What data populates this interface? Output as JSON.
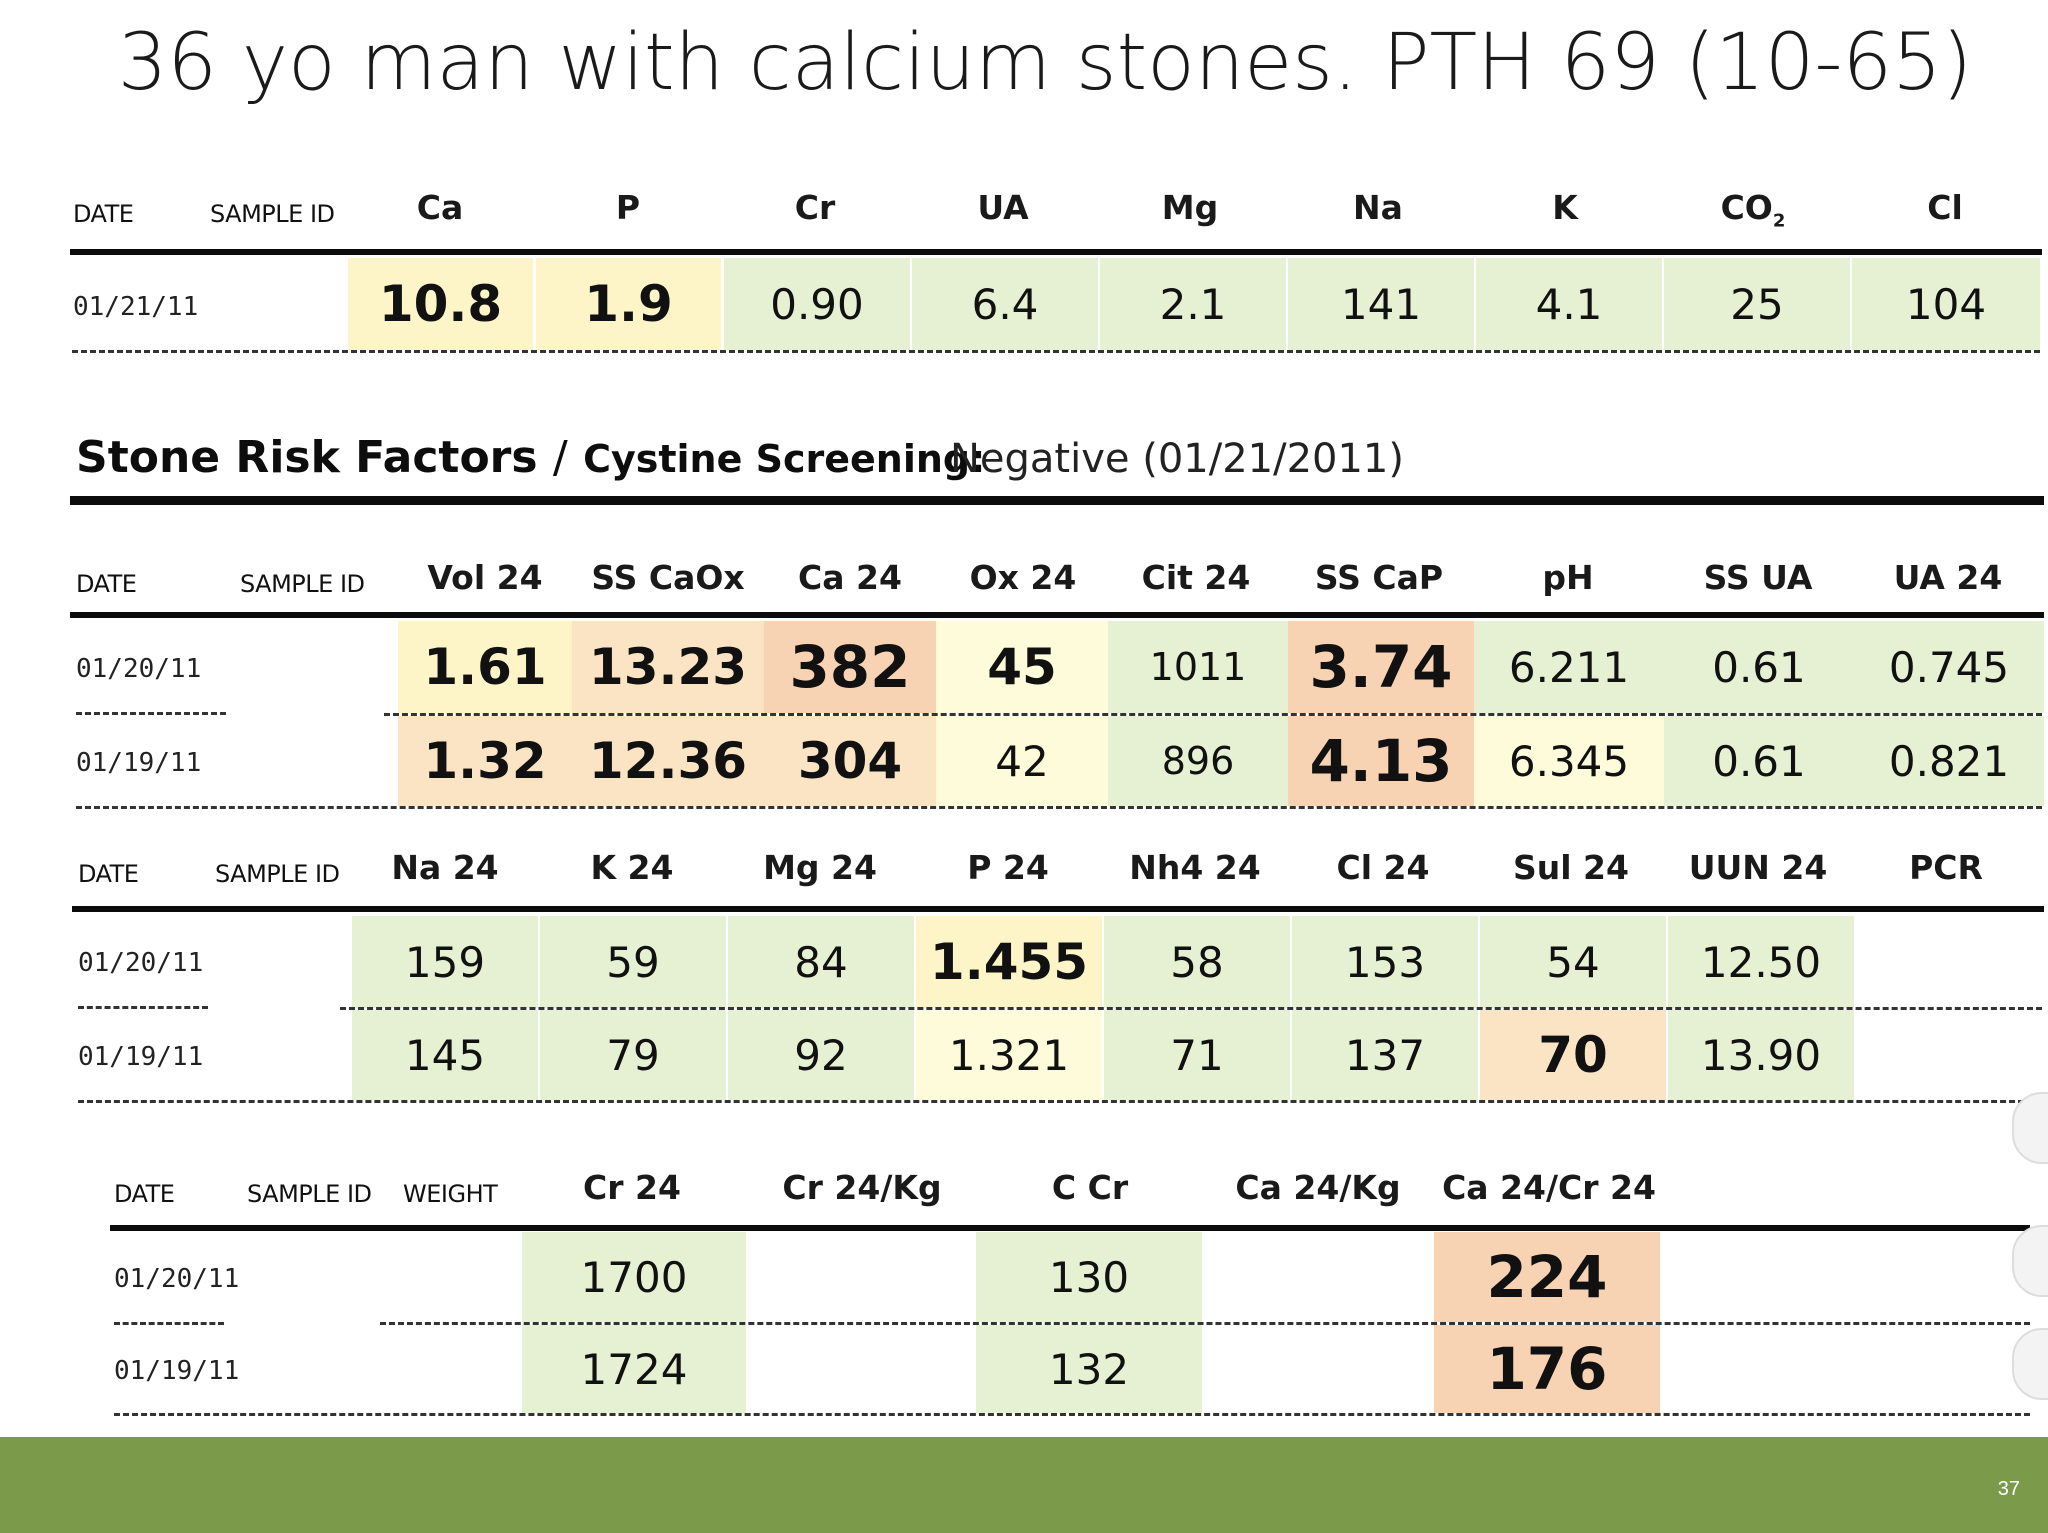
{
  "title": "36 yo man with calcium stones. PTH 69 (10-65)",
  "labels": {
    "date": "DATE",
    "sample_id": "SAMPLE ID",
    "weight": "WEIGHT"
  },
  "serum": {
    "headers": [
      "Ca",
      "P",
      "Cr",
      "UA",
      "Mg",
      "Na",
      "K",
      "CO",
      "Cl"
    ],
    "co2_sub": "2",
    "rows": [
      {
        "date": "01/21/11",
        "values": [
          "10.8",
          "1.9",
          "0.90",
          "6.4",
          "2.1",
          "141",
          "4.1",
          "25",
          "104"
        ]
      }
    ]
  },
  "stone_risk": {
    "title": "Stone Risk Factors",
    "slash": "/",
    "subtitle": "Cystine Screening:",
    "screening_result": "Negative (01/21/2011)"
  },
  "urine1": {
    "headers": [
      "Vol 24",
      "SS CaOx",
      "Ca 24",
      "Ox 24",
      "Cit 24",
      "SS CaP",
      "pH",
      "SS UA",
      "UA 24"
    ],
    "rows": [
      {
        "date": "01/20/11",
        "values": [
          "1.61",
          "13.23",
          "382",
          "45",
          "1011",
          "3.74",
          "6.211",
          "0.61",
          "0.745"
        ]
      },
      {
        "date": "01/19/11",
        "values": [
          "1.32",
          "12.36",
          "304",
          "42",
          "896",
          "4.13",
          "6.345",
          "0.61",
          "0.821"
        ]
      }
    ]
  },
  "urine2": {
    "headers": [
      "Na 24",
      "K 24",
      "Mg 24",
      "P 24",
      "Nh4 24",
      "Cl 24",
      "Sul 24",
      "UUN 24",
      "PCR"
    ],
    "rows": [
      {
        "date": "01/20/11",
        "values": [
          "159",
          "59",
          "84",
          "1.455",
          "58",
          "153",
          "54",
          "12.50",
          ""
        ]
      },
      {
        "date": "01/19/11",
        "values": [
          "145",
          "79",
          "92",
          "1.321",
          "71",
          "137",
          "70",
          "13.90",
          ""
        ]
      }
    ]
  },
  "urine3": {
    "headers": [
      "Cr 24",
      "Cr 24/Kg",
      "C Cr",
      "Ca 24/Kg",
      "Ca 24/Cr 24"
    ],
    "rows": [
      {
        "date": "01/20/11",
        "values": [
          "1700",
          "",
          "130",
          "",
          "224"
        ]
      },
      {
        "date": "01/19/11",
        "values": [
          "1724",
          "",
          "132",
          "",
          "176"
        ]
      }
    ]
  },
  "page_number": "37",
  "colors": {
    "green": "#e6f0d2",
    "yellow": "#fdf4c8",
    "orange": "#f8d3b3",
    "footer": "#7b9b4b"
  }
}
